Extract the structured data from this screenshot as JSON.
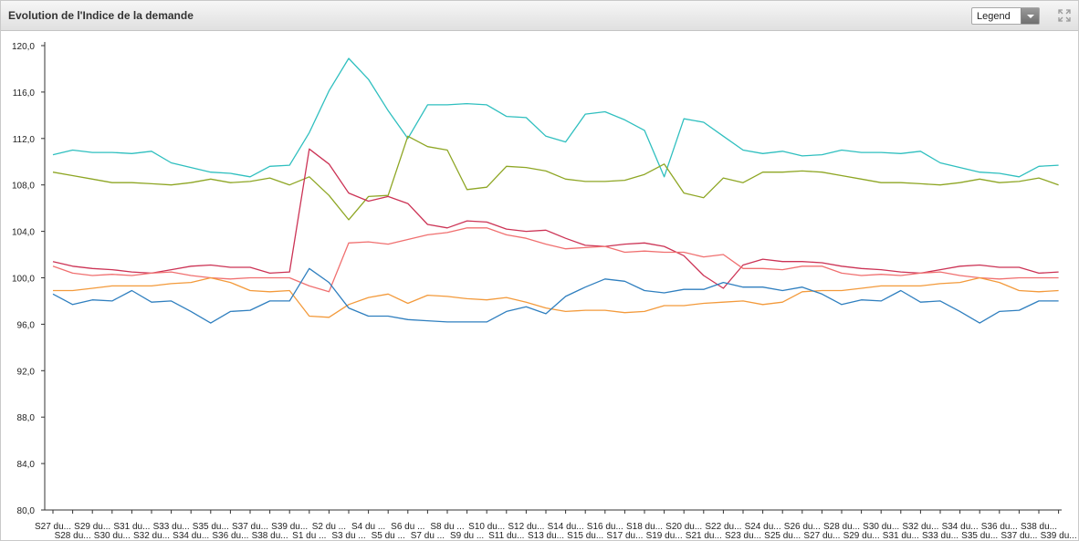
{
  "header": {
    "title": "Evolution de l'Indice de la demande",
    "legend_label": "Legend"
  },
  "icons": {
    "legend_dropdown": "chevron-down-icon",
    "expand": "expand-icon"
  },
  "chart_data": {
    "type": "line",
    "title": "Evolution de l'Indice de la demande",
    "xlabel": "",
    "ylabel": "",
    "ylim": [
      80,
      120
    ],
    "yticks": [
      "80,0",
      "84,0",
      "88,0",
      "92,0",
      "96,0",
      "100,0",
      "104,0",
      "108,0",
      "112,0",
      "116,0",
      "120,0"
    ],
    "grid": false,
    "legend": "collapsed dropdown top-right",
    "categories": [
      "S27 du...",
      "S28 du...",
      "S29 du...",
      "S30 du...",
      "S31 du...",
      "S32 du...",
      "S33 du...",
      "S34 du...",
      "S35 du...",
      "S36 du...",
      "S37 du...",
      "S38 du...",
      "S39 du...",
      "S1 du ...",
      "S2 du ...",
      "S3 du ...",
      "S4 du ...",
      "S5 du ...",
      "S6 du ...",
      "S7 du ...",
      "S8 du ...",
      "S9 du ...",
      "S10 du...",
      "S11 du...",
      "S12 du...",
      "S13 du...",
      "S14 du...",
      "S15 du...",
      "S16 du...",
      "S17 du...",
      "S18 du...",
      "S19 du...",
      "S20 du...",
      "S21 du...",
      "S22 du...",
      "S23 du...",
      "S24 du...",
      "S25 du...",
      "S26 du...",
      "S27 du...",
      "S28 du...",
      "S29 du...",
      "S30 du...",
      "S31 du...",
      "S32 du...",
      "S33 du...",
      "S34 du...",
      "S35 du...",
      "S36 du...",
      "S37 du...",
      "S38 du...",
      "S39 du..."
    ],
    "series": [
      {
        "color": "#2fbfbf",
        "values": [
          110.6,
          111.0,
          110.8,
          110.8,
          110.7,
          110.9,
          109.9,
          109.5,
          109.1,
          109.0,
          108.7,
          109.6,
          109.7,
          112.5,
          116.1,
          118.9,
          117.1,
          114.4,
          112.0,
          114.9,
          114.9,
          115.0,
          114.9,
          113.9,
          113.8,
          112.2,
          111.7,
          114.1,
          114.3,
          113.6,
          112.7,
          108.7,
          113.7,
          113.4,
          112.2,
          111.0,
          110.7,
          110.9,
          110.5,
          110.6,
          111.0,
          110.8,
          110.8,
          110.7,
          110.9,
          109.9,
          109.5,
          109.1,
          109.0,
          108.7,
          109.6,
          109.7
        ]
      },
      {
        "color": "#8ea624",
        "values": [
          109.1,
          108.8,
          108.5,
          108.2,
          108.2,
          108.1,
          108.0,
          108.2,
          108.5,
          108.2,
          108.3,
          108.6,
          108.0,
          108.7,
          107.1,
          105.0,
          107.0,
          107.1,
          112.2,
          111.3,
          111.0,
          107.6,
          107.8,
          109.6,
          109.5,
          109.2,
          108.5,
          108.3,
          108.3,
          108.4,
          108.9,
          109.8,
          107.3,
          106.9,
          108.6,
          108.2,
          109.1,
          109.1,
          109.2,
          109.1,
          108.8,
          108.5,
          108.2,
          108.2,
          108.1,
          108.0,
          108.2,
          108.5,
          108.2,
          108.3,
          108.6,
          108.0
        ]
      },
      {
        "color": "#cc3355",
        "values": [
          101.4,
          101.0,
          100.8,
          100.7,
          100.5,
          100.4,
          100.7,
          101.0,
          101.1,
          100.9,
          100.9,
          100.4,
          100.5,
          111.1,
          109.8,
          107.3,
          106.6,
          107.0,
          106.4,
          104.6,
          104.3,
          104.9,
          104.8,
          104.2,
          104.0,
          104.1,
          103.4,
          102.8,
          102.7,
          102.9,
          103.0,
          102.7,
          101.9,
          100.2,
          99.1,
          101.1,
          101.6,
          101.4,
          101.4,
          101.3,
          101.0,
          100.8,
          100.7,
          100.5,
          100.4,
          100.7,
          101.0,
          101.1,
          100.9,
          100.9,
          100.4,
          100.5
        ]
      },
      {
        "color": "#f07070",
        "values": [
          101.0,
          100.4,
          100.2,
          100.3,
          100.2,
          100.4,
          100.5,
          100.2,
          100.0,
          99.9,
          100.0,
          100.0,
          100.0,
          99.3,
          98.8,
          103.0,
          103.1,
          102.9,
          103.3,
          103.7,
          103.9,
          104.3,
          104.3,
          103.7,
          103.4,
          102.9,
          102.5,
          102.6,
          102.7,
          102.2,
          102.3,
          102.2,
          102.2,
          101.8,
          102.0,
          100.8,
          100.8,
          100.7,
          101.0,
          101.0,
          100.4,
          100.2,
          100.3,
          100.2,
          100.4,
          100.5,
          100.2,
          100.0,
          99.9,
          100.0,
          100.0,
          100.0
        ]
      },
      {
        "color": "#f39a3b",
        "values": [
          98.9,
          98.9,
          99.1,
          99.3,
          99.3,
          99.3,
          99.5,
          99.6,
          100.0,
          99.6,
          98.9,
          98.8,
          98.9,
          96.7,
          96.6,
          97.7,
          98.3,
          98.6,
          97.8,
          98.5,
          98.4,
          98.2,
          98.1,
          98.3,
          97.9,
          97.4,
          97.1,
          97.2,
          97.2,
          97.0,
          97.1,
          97.6,
          97.6,
          97.8,
          97.9,
          98.0,
          97.7,
          97.9,
          98.8,
          98.9,
          98.9,
          99.1,
          99.3,
          99.3,
          99.3,
          99.5,
          99.6,
          100.0,
          99.6,
          98.9,
          98.8,
          98.9
        ]
      },
      {
        "color": "#2f7fbf",
        "values": [
          98.6,
          97.7,
          98.1,
          98.0,
          98.9,
          97.9,
          98.0,
          97.1,
          96.1,
          97.1,
          97.2,
          98.0,
          98.0,
          100.8,
          99.6,
          97.4,
          96.7,
          96.7,
          96.4,
          96.3,
          96.2,
          96.2,
          96.2,
          97.1,
          97.5,
          96.9,
          98.4,
          99.2,
          99.9,
          99.7,
          98.9,
          98.7,
          99.0,
          99.0,
          99.6,
          99.2,
          99.2,
          98.9,
          99.2,
          98.6,
          97.7,
          98.1,
          98.0,
          98.9,
          97.9,
          98.0,
          97.1,
          96.1,
          97.1,
          97.2,
          98.0,
          98.0
        ]
      }
    ]
  }
}
